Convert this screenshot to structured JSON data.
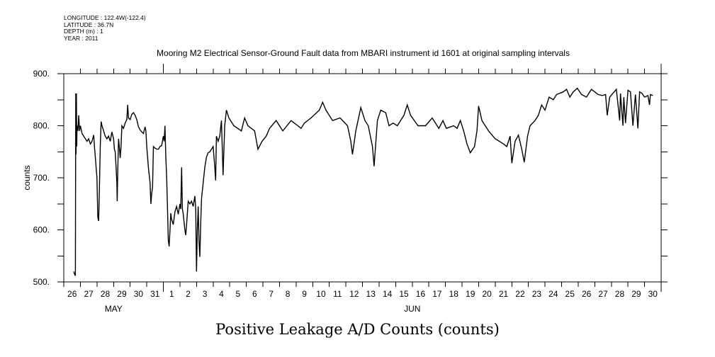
{
  "meta": {
    "longitude": "LONGITUDE : 122.4W(-122.4)",
    "latitude": "LATITUDE : 36.7N",
    "depth": "DEPTH (m) : 1",
    "year": "YEAR : 2011"
  },
  "chart_data": {
    "type": "line",
    "title": "Mooring M2 Electrical Sensor-Ground Fault data from MBARI instrument id 1601 at original sampling intervals",
    "bottom_title": "Positive Leakage A/D Counts (counts)",
    "xlabel": "",
    "ylabel": "counts",
    "xlim": [
      0,
      36
    ],
    "ylim": [
      500,
      900
    ],
    "y_ticks": [
      500,
      600,
      700,
      800,
      900
    ],
    "y_tick_labels": [
      "500.",
      "600.",
      "700.",
      "800.",
      "900."
    ],
    "y_minor_ticks": [
      550,
      650,
      750,
      850
    ],
    "x_tick_labels": [
      "26",
      "27",
      "28",
      "29",
      "30",
      "31",
      "1",
      "2",
      "3",
      "4",
      "5",
      "6",
      "7",
      "8",
      "9",
      "10",
      "11",
      "12",
      "13",
      "14",
      "15",
      "16",
      "17",
      "18",
      "19",
      "20",
      "21",
      "22",
      "23",
      "24",
      "25",
      "26",
      "27",
      "28",
      "29",
      "30"
    ],
    "month_labels": [
      {
        "label": "MAY",
        "day": 3
      },
      {
        "label": "JUN",
        "day": 21
      }
    ],
    "month_boundaries": [
      6,
      36
    ],
    "grid": false,
    "line_color": "#000000",
    "series": [
      {
        "name": "Positive Leakage A/D Counts",
        "points": [
          [
            0.6,
            520
          ],
          [
            0.65,
            515
          ],
          [
            0.7,
            512
          ],
          [
            0.72,
            862
          ],
          [
            0.74,
            745
          ],
          [
            0.76,
            862
          ],
          [
            0.78,
            760
          ],
          [
            0.8,
            800
          ],
          [
            0.85,
            790
          ],
          [
            0.9,
            820
          ],
          [
            0.95,
            790
          ],
          [
            1.0,
            800
          ],
          [
            1.1,
            785
          ],
          [
            1.2,
            780
          ],
          [
            1.4,
            770
          ],
          [
            1.5,
            775
          ],
          [
            1.6,
            765
          ],
          [
            1.7,
            770
          ],
          [
            1.8,
            782
          ],
          [
            1.85,
            760
          ],
          [
            1.9,
            740
          ],
          [
            2.0,
            700
          ],
          [
            2.05,
            625
          ],
          [
            2.1,
            617
          ],
          [
            2.15,
            680
          ],
          [
            2.2,
            760
          ],
          [
            2.25,
            808
          ],
          [
            2.3,
            800
          ],
          [
            2.4,
            790
          ],
          [
            2.5,
            780
          ],
          [
            2.6,
            775
          ],
          [
            2.7,
            780
          ],
          [
            2.8,
            770
          ],
          [
            2.9,
            788
          ],
          [
            3.0,
            775
          ],
          [
            3.05,
            755
          ],
          [
            3.1,
            750
          ],
          [
            3.15,
            720
          ],
          [
            3.2,
            690
          ],
          [
            3.22,
            655
          ],
          [
            3.26,
            720
          ],
          [
            3.3,
            775
          ],
          [
            3.35,
            760
          ],
          [
            3.4,
            738
          ],
          [
            3.45,
            760
          ],
          [
            3.5,
            800
          ],
          [
            3.6,
            795
          ],
          [
            3.7,
            805
          ],
          [
            3.8,
            812
          ],
          [
            3.85,
            840
          ],
          [
            3.9,
            815
          ],
          [
            4.0,
            812
          ],
          [
            4.1,
            822
          ],
          [
            4.2,
            825
          ],
          [
            4.3,
            820
          ],
          [
            4.4,
            812
          ],
          [
            4.5,
            798
          ],
          [
            4.6,
            792
          ],
          [
            4.7,
            788
          ],
          [
            4.8,
            785
          ],
          [
            4.9,
            798
          ],
          [
            4.95,
            790
          ],
          [
            5.0,
            760
          ],
          [
            5.1,
            720
          ],
          [
            5.2,
            690
          ],
          [
            5.25,
            650
          ],
          [
            5.3,
            670
          ],
          [
            5.35,
            682
          ],
          [
            5.4,
            760
          ],
          [
            5.5,
            757
          ],
          [
            5.6,
            755
          ],
          [
            5.7,
            755
          ],
          [
            5.8,
            760
          ],
          [
            5.9,
            762
          ],
          [
            6.0,
            780
          ],
          [
            6.05,
            770
          ],
          [
            6.1,
            800
          ],
          [
            6.15,
            740
          ],
          [
            6.2,
            700
          ],
          [
            6.25,
            640
          ],
          [
            6.3,
            580
          ],
          [
            6.35,
            568
          ],
          [
            6.4,
            600
          ],
          [
            6.45,
            632
          ],
          [
            6.5,
            620
          ],
          [
            6.6,
            610
          ],
          [
            6.7,
            635
          ],
          [
            6.8,
            645
          ],
          [
            6.9,
            630
          ],
          [
            7.0,
            650
          ],
          [
            7.05,
            640
          ],
          [
            7.1,
            720
          ],
          [
            7.15,
            640
          ],
          [
            7.2,
            630
          ],
          [
            7.3,
            600
          ],
          [
            7.35,
            590
          ],
          [
            7.4,
            610
          ],
          [
            7.5,
            655
          ],
          [
            7.6,
            650
          ],
          [
            7.7,
            655
          ],
          [
            7.8,
            645
          ],
          [
            7.9,
            665
          ],
          [
            7.95,
            640
          ],
          [
            8.0,
            520
          ],
          [
            8.05,
            600
          ],
          [
            8.1,
            645
          ],
          [
            8.15,
            580
          ],
          [
            8.2,
            548
          ],
          [
            8.25,
            610
          ],
          [
            8.3,
            660
          ],
          [
            8.4,
            690
          ],
          [
            8.5,
            720
          ],
          [
            8.6,
            740
          ],
          [
            8.7,
            748
          ],
          [
            8.8,
            750
          ],
          [
            8.9,
            755
          ],
          [
            9.0,
            760
          ],
          [
            9.1,
            720
          ],
          [
            9.15,
            695
          ],
          [
            9.2,
            780
          ],
          [
            9.3,
            770
          ],
          [
            9.4,
            780
          ],
          [
            9.5,
            810
          ],
          [
            9.6,
            705
          ],
          [
            9.7,
            800
          ],
          [
            9.8,
            830
          ],
          [
            9.95,
            815
          ],
          [
            10.25,
            800
          ],
          [
            10.7,
            790
          ],
          [
            10.9,
            815
          ],
          [
            11.1,
            800
          ],
          [
            11.5,
            790
          ],
          [
            11.7,
            755
          ],
          [
            11.95,
            770
          ],
          [
            12.2,
            780
          ],
          [
            12.4,
            795
          ],
          [
            12.8,
            810
          ],
          [
            13.0,
            800
          ],
          [
            13.2,
            790
          ],
          [
            13.7,
            810
          ],
          [
            14.1,
            800
          ],
          [
            14.3,
            795
          ],
          [
            14.5,
            805
          ],
          [
            14.9,
            815
          ],
          [
            15.4,
            830
          ],
          [
            15.6,
            845
          ],
          [
            15.8,
            830
          ],
          [
            16.2,
            810
          ],
          [
            16.65,
            815
          ],
          [
            17.1,
            800
          ],
          [
            17.3,
            770
          ],
          [
            17.4,
            745
          ],
          [
            17.6,
            790
          ],
          [
            17.9,
            835
          ],
          [
            18.15,
            810
          ],
          [
            18.35,
            800
          ],
          [
            18.6,
            760
          ],
          [
            18.7,
            722
          ],
          [
            18.9,
            810
          ],
          [
            19.1,
            830
          ],
          [
            19.4,
            825
          ],
          [
            19.6,
            800
          ],
          [
            19.85,
            805
          ],
          [
            20.1,
            800
          ],
          [
            20.5,
            820
          ],
          [
            20.7,
            840
          ],
          [
            20.9,
            820
          ],
          [
            21.35,
            800
          ],
          [
            21.8,
            800
          ],
          [
            22.2,
            815
          ],
          [
            22.4,
            805
          ],
          [
            22.6,
            795
          ],
          [
            22.85,
            810
          ],
          [
            23.05,
            795
          ],
          [
            23.5,
            800
          ],
          [
            23.7,
            795
          ],
          [
            23.9,
            810
          ],
          [
            24.1,
            790
          ],
          [
            24.3,
            765
          ],
          [
            24.5,
            748
          ],
          [
            24.75,
            760
          ],
          [
            24.9,
            790
          ],
          [
            25.0,
            838
          ],
          [
            25.2,
            810
          ],
          [
            25.6,
            790
          ],
          [
            26.0,
            775
          ],
          [
            26.5,
            765
          ],
          [
            26.7,
            760
          ],
          [
            26.9,
            780
          ],
          [
            27.0,
            728
          ],
          [
            27.2,
            770
          ],
          [
            27.4,
            782
          ],
          [
            27.6,
            755
          ],
          [
            27.75,
            730
          ],
          [
            27.95,
            780
          ],
          [
            28.1,
            800
          ],
          [
            28.4,
            810
          ],
          [
            28.6,
            820
          ],
          [
            28.8,
            840
          ],
          [
            29.0,
            830
          ],
          [
            29.25,
            855
          ],
          [
            29.5,
            850
          ],
          [
            29.7,
            860
          ],
          [
            30.1,
            865
          ],
          [
            30.3,
            870
          ],
          [
            30.5,
            855
          ],
          [
            30.7,
            865
          ],
          [
            30.95,
            872
          ],
          [
            31.2,
            860
          ],
          [
            31.5,
            855
          ],
          [
            31.8,
            870
          ],
          [
            32.0,
            865
          ],
          [
            32.2,
            860
          ],
          [
            32.45,
            858
          ],
          [
            32.65,
            860
          ],
          [
            32.75,
            820
          ],
          [
            32.9,
            855
          ],
          [
            33.3,
            870
          ],
          [
            33.5,
            810
          ],
          [
            33.55,
            862
          ],
          [
            33.7,
            800
          ],
          [
            33.75,
            855
          ],
          [
            33.85,
            805
          ],
          [
            34.0,
            868
          ],
          [
            34.15,
            865
          ],
          [
            34.3,
            800
          ],
          [
            34.45,
            860
          ],
          [
            34.6,
            795
          ],
          [
            34.7,
            865
          ],
          [
            34.85,
            862
          ],
          [
            35.0,
            855
          ],
          [
            35.2,
            858
          ],
          [
            35.3,
            840
          ],
          [
            35.35,
            860
          ],
          [
            35.5,
            858
          ]
        ]
      }
    ]
  }
}
